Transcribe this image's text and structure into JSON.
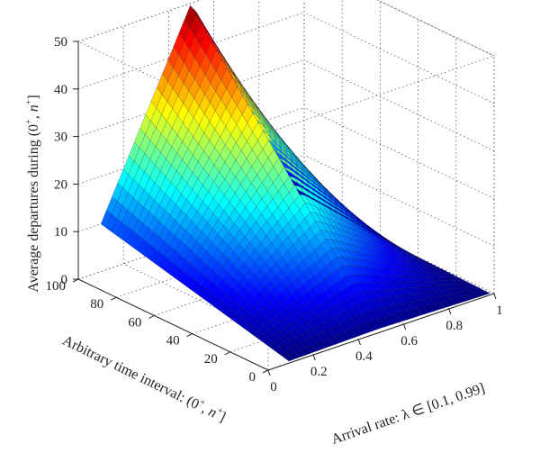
{
  "chart_data": {
    "type": "surface3d",
    "xlabel": "Arrival rate: λ ∈ [0.1, 0.99]",
    "ylabel": {
      "text": "Arbitrary time interval: (0",
      "sup1": "+",
      "mid": ", n",
      "sup2": "+",
      "end": "]"
    },
    "zlabel": {
      "text": "Average departures during (0",
      "sup1": "+",
      "mid": ", n",
      "sup2": "+",
      "end": "]"
    },
    "x_ticks": [
      "0",
      "0.2",
      "0.4",
      "0.6",
      "0.8",
      "1"
    ],
    "y_ticks": [
      "0",
      "20",
      "40",
      "60",
      "80",
      "100"
    ],
    "z_ticks": [
      "0",
      "10",
      "20",
      "30",
      "40",
      "50"
    ],
    "xlim": [
      0,
      1
    ],
    "ylim": [
      0,
      100
    ],
    "zlim": [
      0,
      50
    ],
    "lambda_range": [
      0.1,
      0.99
    ],
    "n_range": [
      1,
      100
    ],
    "surface_description_values": {
      "ridge_lambda": 0.5,
      "value_at_ridge_n100": 50,
      "value_at_lambda_0_1_n100": 10,
      "value_at_lambda_0_99_n100": 1
    },
    "colormap": "jet",
    "grid": true
  }
}
